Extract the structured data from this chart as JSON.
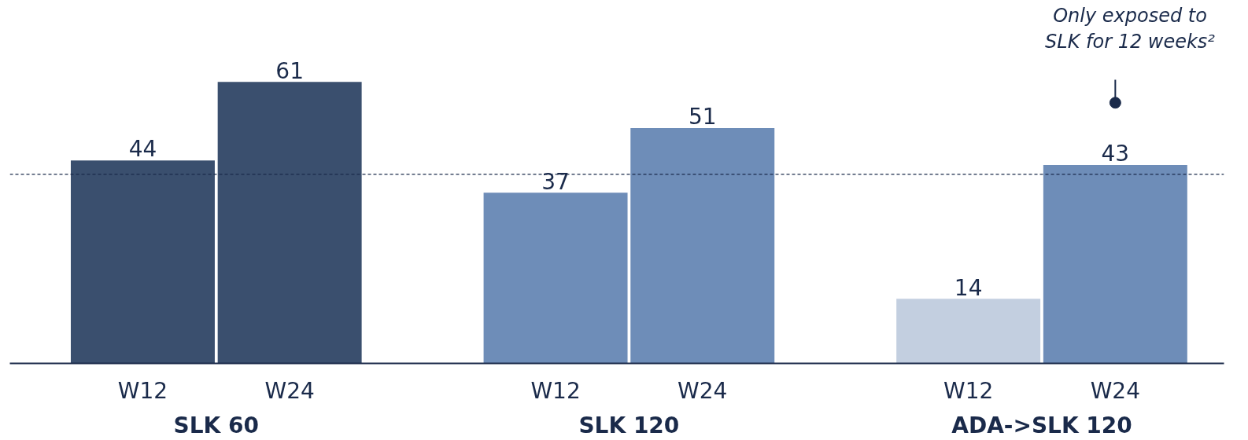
{
  "chart_data": {
    "type": "bar",
    "categories": [
      "W12",
      "W24",
      "W12",
      "W24",
      "W12",
      "W24"
    ],
    "values": [
      44,
      61,
      37,
      51,
      14,
      43
    ],
    "colors": [
      "#3a4f6e",
      "#3a4f6e",
      "#6e8db8",
      "#6e8db8",
      "#c3cfe0",
      "#6e8db8"
    ],
    "data_labels": true,
    "tick_labels": "x",
    "grid": false,
    "ref_lines": [
      {
        "axis": "y",
        "value": 41,
        "line_style": "dashed",
        "color": "#1a2a4a"
      }
    ],
    "annotations": [
      "SLK 60",
      "SLK 120",
      "ADA->SLK 120",
      "Only exposed to\nSLK for 12 weeks²"
    ]
  }
}
